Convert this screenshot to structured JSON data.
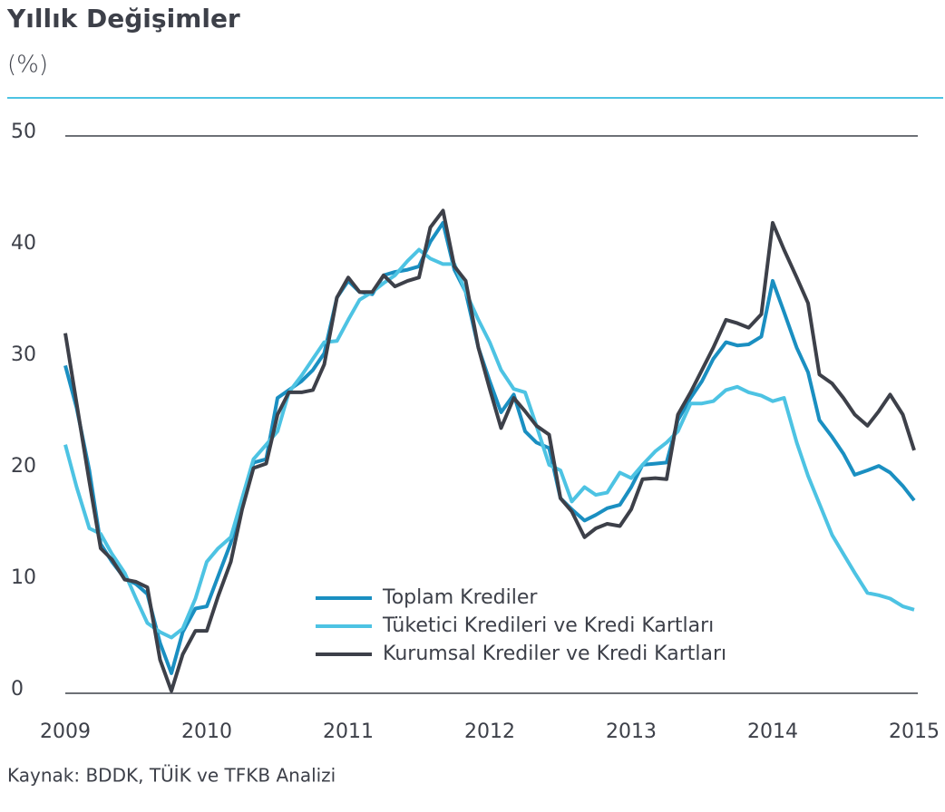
{
  "chart_data": {
    "type": "line",
    "title": "Yıllık Değişimler",
    "subtitle": "(%)",
    "source": "Kaynak: BDDK, TÜİK ve TFKB Analizi",
    "x": [
      2009,
      2009.08,
      2009.17,
      2009.25,
      2009.33,
      2009.42,
      2009.5,
      2009.58,
      2009.67,
      2009.75,
      2009.83,
      2009.92,
      2010,
      2010.08,
      2010.17,
      2010.25,
      2010.33,
      2010.42,
      2010.5,
      2010.58,
      2010.67,
      2010.75,
      2010.83,
      2010.92,
      2011,
      2011.08,
      2011.17,
      2011.25,
      2011.33,
      2011.42,
      2011.5,
      2011.58,
      2011.67,
      2011.75,
      2011.83,
      2011.92,
      2012,
      2012.08,
      2012.17,
      2012.25,
      2012.33,
      2012.42,
      2012.5,
      2012.58,
      2012.67,
      2012.75,
      2012.83,
      2012.92,
      2013,
      2013.08,
      2013.17,
      2013.25,
      2013.33,
      2013.42,
      2013.5,
      2013.58,
      2013.67,
      2013.75,
      2013.83,
      2013.92,
      2014,
      2014.08,
      2014.17,
      2014.25,
      2014.33,
      2014.42,
      2014.5,
      2014.58,
      2014.67,
      2014.75,
      2014.83,
      2014.92,
      2015
    ],
    "series": [
      {
        "name": "Toplam Krediler",
        "color": "#1a8fc1",
        "values": [
          29.4,
          25.6,
          20,
          13.4,
          11.8,
          10.3,
          9.8,
          8.9,
          4.5,
          1.8,
          5.5,
          7.6,
          7.8,
          10.5,
          13.5,
          17,
          20.7,
          21,
          26.5,
          27.2,
          28,
          29,
          30.5,
          35.5,
          37,
          36,
          35.8,
          37.5,
          37.8,
          38,
          38.3,
          40.5,
          42.2,
          38,
          36,
          31,
          28,
          25.2,
          26.8,
          23.5,
          22.5,
          22,
          17.5,
          16.5,
          15.5,
          16,
          16.6,
          16.9,
          18.5,
          20.5,
          20.6,
          20.7,
          24.5,
          26.5,
          28,
          30,
          31.5,
          31.2,
          31.3,
          32,
          37,
          34.2,
          31,
          28.8,
          24.5,
          23,
          21.5,
          19.6,
          20,
          20.4,
          19.8,
          18.6,
          17.3
        ]
      },
      {
        "name": "Tüketici Kredileri ve Kredi Kartları",
        "color": "#4dc3e3",
        "values": [
          22.3,
          18.5,
          14.8,
          14.3,
          12.5,
          10.8,
          8.5,
          6.3,
          5.5,
          5,
          5.8,
          8.5,
          11.8,
          13,
          14,
          17.5,
          21,
          22.3,
          23.5,
          27,
          28.5,
          30,
          31.5,
          31.6,
          33.5,
          35.3,
          36,
          36.8,
          37.5,
          38.8,
          39.8,
          39,
          38.5,
          38.5,
          36,
          33.5,
          31.5,
          29,
          27.3,
          27,
          24,
          20.5,
          20,
          17.2,
          18.5,
          17.8,
          18,
          19.8,
          19.3,
          20.5,
          21.7,
          22.5,
          23.5,
          26,
          26,
          26.2,
          27.2,
          27.5,
          27,
          26.7,
          26.2,
          26.5,
          22.5,
          19.5,
          17,
          14.2,
          12.5,
          10.8,
          9,
          8.8,
          8.5,
          7.8,
          7.5
        ]
      },
      {
        "name": "Kurumsal Krediler ve Kredi Kartları",
        "color": "#3d4049",
        "values": [
          32.3,
          26,
          19,
          13,
          12,
          10.2,
          10,
          9.5,
          3,
          0.2,
          3.5,
          5.6,
          5.6,
          8.7,
          11.8,
          16.5,
          20.2,
          20.6,
          25,
          27,
          27,
          27.2,
          29.5,
          35.5,
          37.3,
          36,
          36,
          37.5,
          36.5,
          37,
          37.3,
          41.8,
          43.3,
          38.3,
          37,
          31,
          27.3,
          23.8,
          26.5,
          25.3,
          24,
          23.2,
          17.5,
          16.3,
          14,
          14.8,
          15.2,
          15,
          16.5,
          19.2,
          19.3,
          19.2,
          25,
          27,
          29,
          31,
          33.5,
          33.2,
          32.8,
          34,
          42.2,
          39.8,
          37.3,
          35,
          28.6,
          27.8,
          26.5,
          25,
          24,
          25.3,
          26.8,
          25,
          21.8
        ]
      }
    ],
    "xlim": [
      2009,
      2015
    ],
    "xticks": [
      2009,
      2010,
      2011,
      2012,
      2013,
      2014,
      2015
    ],
    "ylim": [
      0,
      50
    ],
    "yticks": [
      0,
      10,
      20,
      30,
      40,
      50
    ]
  }
}
